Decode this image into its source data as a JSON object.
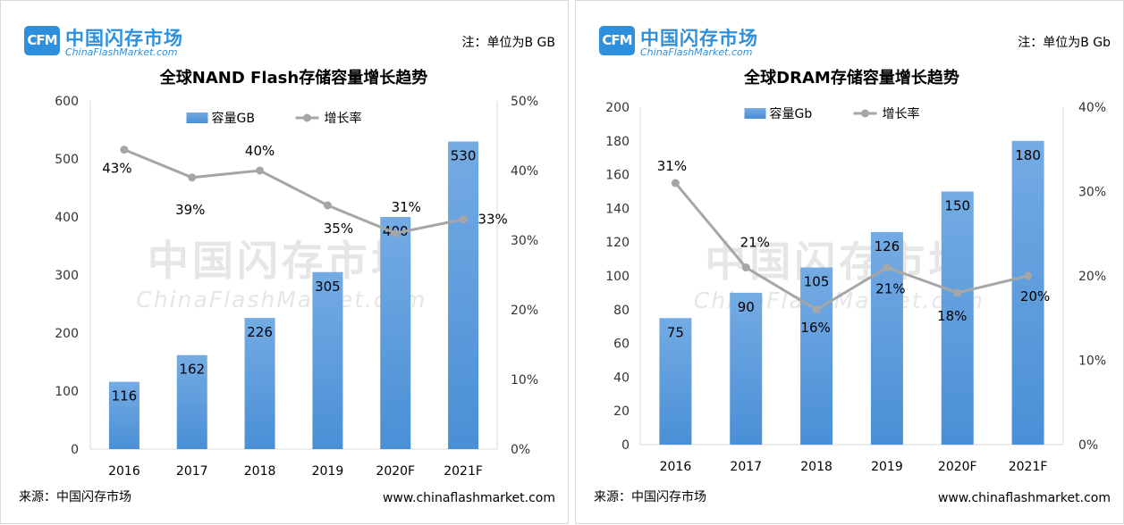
{
  "colors": {
    "bar": "#4a8fd6",
    "bar_light": "#74abe3",
    "line": "#a6a6a6",
    "brand": "#2e8fdc",
    "watermark": "#e6e6e6"
  },
  "panels": [
    {
      "logo": {
        "mark": "CFM",
        "cn": "中国闪存市场",
        "en": "ChinaFlashMarket.com"
      },
      "unit_note": "注：单位为B GB",
      "footer": {
        "source": "来源：中国闪存市场",
        "site": "www.chinaflashmarket.com"
      },
      "watermark": {
        "cn": "中国闪存市场",
        "en": "ChinaFlashMarket.com"
      }
    },
    {
      "logo": {
        "mark": "CFM",
        "cn": "中国闪存市场",
        "en": "ChinaFlashMarket.com"
      },
      "unit_note": "注：单位为B Gb",
      "footer": {
        "source": "来源：中国闪存市场",
        "site": "www.chinaflashmarket.com"
      },
      "watermark": {
        "cn": "中国闪存市场",
        "en": "ChinaFlashMarket.com"
      }
    }
  ],
  "chart_data": [
    {
      "type": "bar",
      "title": "全球NAND Flash存储容量增长趋势",
      "categories": [
        "2016",
        "2017",
        "2018",
        "2019",
        "2020F",
        "2021F"
      ],
      "series": [
        {
          "name": "容量GB",
          "type": "bar",
          "axis": "left",
          "values": [
            116,
            162,
            226,
            305,
            400,
            530
          ],
          "labels": [
            "116",
            "162",
            "226",
            "305",
            "400",
            "530"
          ]
        },
        {
          "name": "增长率",
          "type": "line",
          "axis": "right",
          "values": [
            43,
            39,
            40,
            35,
            31,
            33
          ],
          "labels": [
            "43%",
            "39%",
            "40%",
            "35%",
            "31%",
            "33%"
          ]
        }
      ],
      "ylim": [
        0,
        600
      ],
      "yticks": [
        "0",
        "100",
        "200",
        "300",
        "400",
        "500",
        "600"
      ],
      "y2lim": [
        0,
        50
      ],
      "y2ticks": [
        "0%",
        "10%",
        "20%",
        "30%",
        "40%",
        "50%"
      ],
      "legend": "top-center",
      "grid": false
    },
    {
      "type": "bar",
      "title": "全球DRAM存储容量增长趋势",
      "categories": [
        "2016",
        "2017",
        "2018",
        "2019",
        "2020F",
        "2021F"
      ],
      "series": [
        {
          "name": "容量Gb",
          "type": "bar",
          "axis": "left",
          "values": [
            75,
            90,
            105,
            126,
            150,
            180
          ],
          "labels": [
            "75",
            "90",
            "105",
            "126",
            "150",
            "180"
          ]
        },
        {
          "name": "增长率",
          "type": "line",
          "axis": "right",
          "values": [
            31,
            21,
            16,
            21,
            18,
            20
          ],
          "labels": [
            "31%",
            "21%",
            "16%",
            "21%",
            "18%",
            "20%"
          ]
        }
      ],
      "ylim": [
        0,
        200
      ],
      "yticks": [
        "0",
        "20",
        "40",
        "60",
        "80",
        "100",
        "120",
        "140",
        "160",
        "180",
        "200"
      ],
      "y2lim": [
        0,
        40
      ],
      "y2ticks": [
        "0%",
        "10%",
        "20%",
        "30%",
        "40%"
      ],
      "legend": "top-center",
      "grid": false
    }
  ]
}
